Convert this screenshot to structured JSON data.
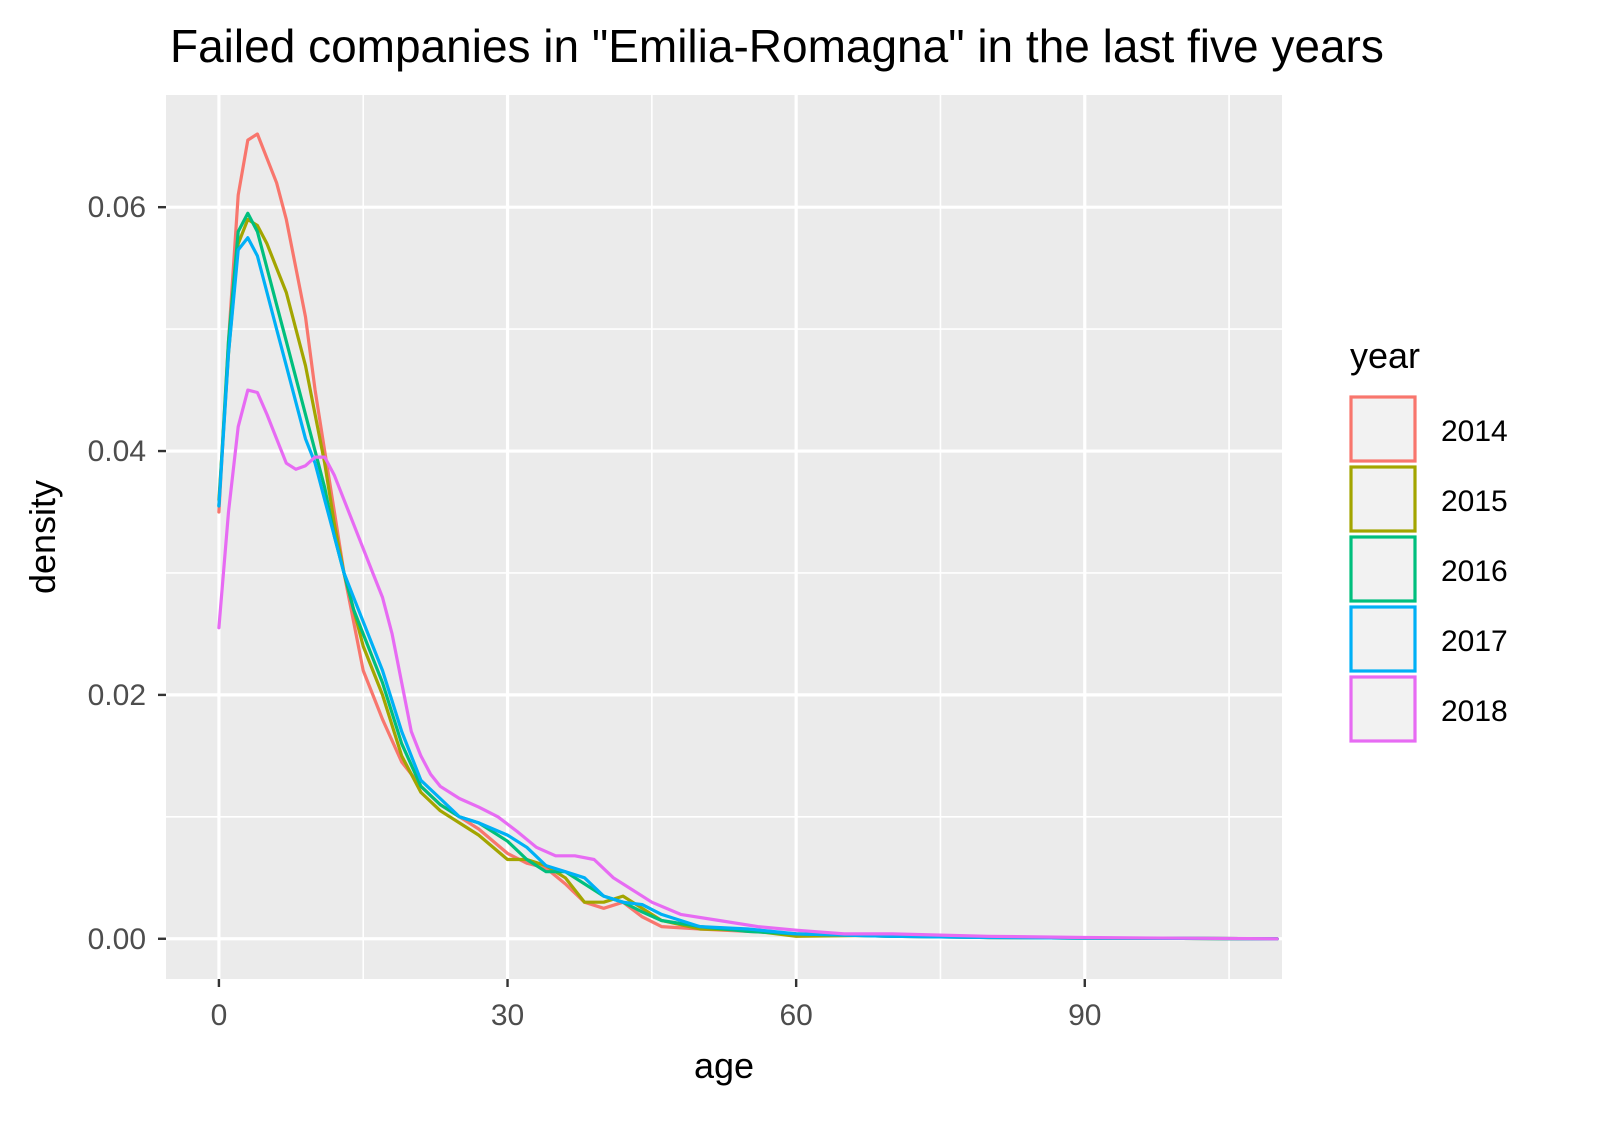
{
  "chart_data": {
    "type": "line",
    "title": "Failed companies in \"Emilia-Romagna\" in the last five years",
    "xlabel": "age",
    "ylabel": "density",
    "xlim": [
      -5.5,
      110.5
    ],
    "ylim": [
      -0.0033,
      0.0692
    ],
    "x_ticks": [
      0,
      30,
      60,
      90
    ],
    "x_tick_labels": [
      "0",
      "30",
      "60",
      "90"
    ],
    "y_ticks": [
      0.0,
      0.02,
      0.04,
      0.06
    ],
    "y_tick_labels": [
      "0.00",
      "0.02",
      "0.04",
      "0.06"
    ],
    "grid": true,
    "background": "#ebebeb",
    "legend": {
      "title": "year",
      "position": "right"
    },
    "series": [
      {
        "name": "2014",
        "color": "#F8766D",
        "points": [
          [
            0,
            0.035
          ],
          [
            1,
            0.049
          ],
          [
            2,
            0.061
          ],
          [
            3,
            0.0655
          ],
          [
            4,
            0.066
          ],
          [
            5,
            0.064
          ],
          [
            6,
            0.062
          ],
          [
            7,
            0.059
          ],
          [
            8,
            0.055
          ],
          [
            9,
            0.051
          ],
          [
            10,
            0.045
          ],
          [
            11,
            0.04
          ],
          [
            12,
            0.035
          ],
          [
            13,
            0.03
          ],
          [
            14,
            0.026
          ],
          [
            15,
            0.022
          ],
          [
            17,
            0.018
          ],
          [
            19,
            0.0145
          ],
          [
            21,
            0.0125
          ],
          [
            23,
            0.011
          ],
          [
            25,
            0.01
          ],
          [
            27,
            0.009
          ],
          [
            30,
            0.007
          ],
          [
            32,
            0.0062
          ],
          [
            34,
            0.0058
          ],
          [
            36,
            0.0045
          ],
          [
            38,
            0.003
          ],
          [
            40,
            0.0025
          ],
          [
            42,
            0.003
          ],
          [
            44,
            0.0018
          ],
          [
            46,
            0.001
          ],
          [
            50,
            0.0008
          ],
          [
            55,
            0.0006
          ],
          [
            60,
            0.0004
          ],
          [
            70,
            0.0002
          ],
          [
            80,
            0.0001
          ],
          [
            90,
            5e-05
          ],
          [
            100,
            3e-05
          ],
          [
            110,
            0.0
          ]
        ]
      },
      {
        "name": "2015",
        "color": "#A3A500",
        "points": [
          [
            0,
            0.036
          ],
          [
            1,
            0.048
          ],
          [
            2,
            0.057
          ],
          [
            3,
            0.059
          ],
          [
            4,
            0.0585
          ],
          [
            5,
            0.057
          ],
          [
            6,
            0.055
          ],
          [
            7,
            0.053
          ],
          [
            8,
            0.05
          ],
          [
            9,
            0.047
          ],
          [
            10,
            0.043
          ],
          [
            11,
            0.039
          ],
          [
            12,
            0.034
          ],
          [
            13,
            0.03
          ],
          [
            14,
            0.027
          ],
          [
            15,
            0.024
          ],
          [
            17,
            0.02
          ],
          [
            19,
            0.015
          ],
          [
            21,
            0.012
          ],
          [
            23,
            0.0105
          ],
          [
            25,
            0.0095
          ],
          [
            27,
            0.0085
          ],
          [
            30,
            0.0065
          ],
          [
            32,
            0.0065
          ],
          [
            34,
            0.006
          ],
          [
            36,
            0.005
          ],
          [
            38,
            0.003
          ],
          [
            40,
            0.003
          ],
          [
            42,
            0.0035
          ],
          [
            44,
            0.0025
          ],
          [
            46,
            0.0015
          ],
          [
            50,
            0.0008
          ],
          [
            55,
            0.0007
          ],
          [
            60,
            0.0002
          ],
          [
            70,
            0.0003
          ],
          [
            80,
            0.0001
          ],
          [
            90,
            5e-05
          ],
          [
            100,
            3e-05
          ],
          [
            110,
            0.0
          ]
        ]
      },
      {
        "name": "2016",
        "color": "#00BF7D",
        "points": [
          [
            0,
            0.0355
          ],
          [
            1,
            0.049
          ],
          [
            2,
            0.058
          ],
          [
            3,
            0.0595
          ],
          [
            4,
            0.058
          ],
          [
            5,
            0.055
          ],
          [
            6,
            0.052
          ],
          [
            7,
            0.049
          ],
          [
            8,
            0.046
          ],
          [
            9,
            0.043
          ],
          [
            10,
            0.04
          ],
          [
            11,
            0.037
          ],
          [
            12,
            0.033
          ],
          [
            13,
            0.03
          ],
          [
            14,
            0.027
          ],
          [
            15,
            0.025
          ],
          [
            17,
            0.021
          ],
          [
            19,
            0.016
          ],
          [
            21,
            0.0125
          ],
          [
            23,
            0.011
          ],
          [
            25,
            0.01
          ],
          [
            27,
            0.0095
          ],
          [
            30,
            0.008
          ],
          [
            32,
            0.0065
          ],
          [
            34,
            0.0055
          ],
          [
            36,
            0.0055
          ],
          [
            38,
            0.0045
          ],
          [
            40,
            0.0035
          ],
          [
            42,
            0.003
          ],
          [
            44,
            0.0022
          ],
          [
            46,
            0.0015
          ],
          [
            50,
            0.001
          ],
          [
            55,
            0.0006
          ],
          [
            60,
            0.0004
          ],
          [
            70,
            0.0002
          ],
          [
            80,
            0.0001
          ],
          [
            90,
            5e-05
          ],
          [
            100,
            3e-05
          ],
          [
            110,
            0.0
          ]
        ]
      },
      {
        "name": "2017",
        "color": "#00B0F6",
        "points": [
          [
            0,
            0.0355
          ],
          [
            1,
            0.048
          ],
          [
            2,
            0.0565
          ],
          [
            3,
            0.0575
          ],
          [
            4,
            0.056
          ],
          [
            5,
            0.053
          ],
          [
            6,
            0.05
          ],
          [
            7,
            0.047
          ],
          [
            8,
            0.044
          ],
          [
            9,
            0.041
          ],
          [
            10,
            0.039
          ],
          [
            11,
            0.036
          ],
          [
            12,
            0.033
          ],
          [
            13,
            0.03
          ],
          [
            14,
            0.028
          ],
          [
            15,
            0.026
          ],
          [
            17,
            0.022
          ],
          [
            19,
            0.017
          ],
          [
            21,
            0.013
          ],
          [
            23,
            0.0115
          ],
          [
            25,
            0.01
          ],
          [
            27,
            0.0095
          ],
          [
            30,
            0.0085
          ],
          [
            32,
            0.0075
          ],
          [
            34,
            0.006
          ],
          [
            36,
            0.0055
          ],
          [
            38,
            0.005
          ],
          [
            40,
            0.0035
          ],
          [
            42,
            0.003
          ],
          [
            44,
            0.0028
          ],
          [
            46,
            0.002
          ],
          [
            50,
            0.001
          ],
          [
            55,
            0.0008
          ],
          [
            60,
            0.0004
          ],
          [
            70,
            0.0002
          ],
          [
            80,
            0.0001
          ],
          [
            90,
            5e-05
          ],
          [
            100,
            3e-05
          ],
          [
            110,
            0.0
          ]
        ]
      },
      {
        "name": "2018",
        "color": "#E76BF3",
        "points": [
          [
            0,
            0.0255
          ],
          [
            1,
            0.035
          ],
          [
            2,
            0.042
          ],
          [
            3,
            0.045
          ],
          [
            4,
            0.0448
          ],
          [
            5,
            0.043
          ],
          [
            6,
            0.041
          ],
          [
            7,
            0.039
          ],
          [
            8,
            0.0385
          ],
          [
            9,
            0.0388
          ],
          [
            10,
            0.0395
          ],
          [
            11,
            0.0395
          ],
          [
            12,
            0.038
          ],
          [
            13,
            0.036
          ],
          [
            14,
            0.034
          ],
          [
            15,
            0.032
          ],
          [
            16,
            0.03
          ],
          [
            17,
            0.028
          ],
          [
            18,
            0.025
          ],
          [
            19,
            0.021
          ],
          [
            20,
            0.017
          ],
          [
            21,
            0.015
          ],
          [
            22,
            0.0135
          ],
          [
            23,
            0.0125
          ],
          [
            25,
            0.0115
          ],
          [
            27,
            0.0108
          ],
          [
            29,
            0.01
          ],
          [
            31,
            0.0088
          ],
          [
            33,
            0.0075
          ],
          [
            35,
            0.0068
          ],
          [
            37,
            0.0068
          ],
          [
            39,
            0.0065
          ],
          [
            41,
            0.005
          ],
          [
            43,
            0.004
          ],
          [
            45,
            0.003
          ],
          [
            48,
            0.002
          ],
          [
            52,
            0.0015
          ],
          [
            56,
            0.001
          ],
          [
            60,
            0.0007
          ],
          [
            65,
            0.0004
          ],
          [
            70,
            0.0004
          ],
          [
            75,
            0.0003
          ],
          [
            80,
            0.0002
          ],
          [
            90,
            0.0001
          ],
          [
            100,
            5e-05
          ],
          [
            110,
            0.0
          ]
        ]
      }
    ]
  }
}
